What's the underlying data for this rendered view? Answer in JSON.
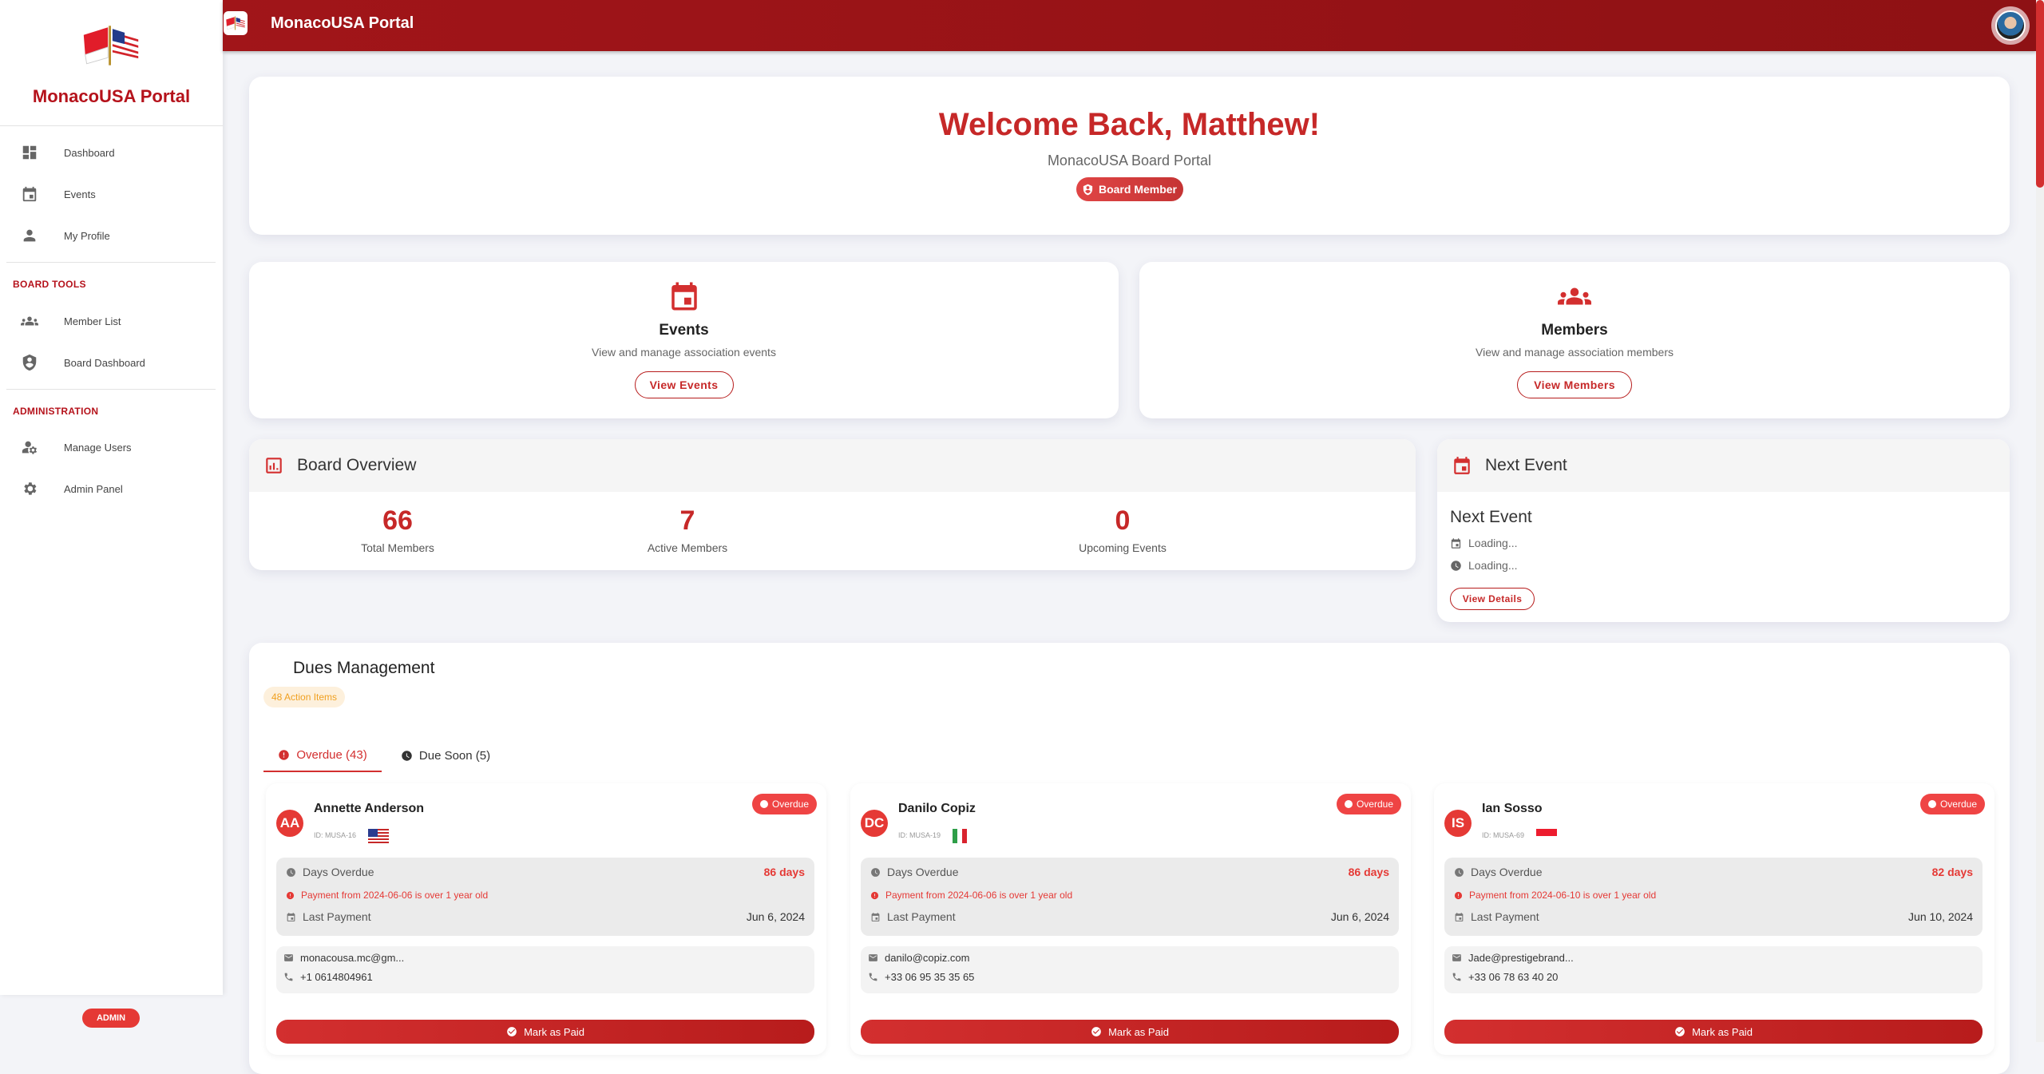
{
  "app": {
    "title": "MonacoUSA Portal",
    "accent": "#b5121b"
  },
  "sidebar": {
    "brand": "MonacoUSA Portal",
    "items": [
      {
        "label": "Dashboard",
        "icon": "dashboard-icon"
      },
      {
        "label": "Events",
        "icon": "calendar-icon"
      },
      {
        "label": "My Profile",
        "icon": "person-icon"
      }
    ],
    "board_tools": {
      "title": "BOARD TOOLS",
      "items": [
        {
          "label": "Member List",
          "icon": "group-icon"
        },
        {
          "label": "Board Dashboard",
          "icon": "shield-account-icon"
        }
      ]
    },
    "administration": {
      "title": "ADMINISTRATION",
      "items": [
        {
          "label": "Manage Users",
          "icon": "manage-accounts-icon"
        },
        {
          "label": "Admin Panel",
          "icon": "gear-icon"
        }
      ]
    },
    "role_badge": "ADMIN"
  },
  "topbar": {
    "title": "MonacoUSA Portal"
  },
  "welcome": {
    "title": "Welcome Back, Matthew!",
    "subtitle": "MonacoUSA Board Portal",
    "badge": "Board Member"
  },
  "quick": [
    {
      "title": "Events",
      "desc": "View and manage association events",
      "button": "View Events",
      "icon": "calendar-icon"
    },
    {
      "title": "Members",
      "desc": "View and manage association members",
      "button": "View Members",
      "icon": "group-icon"
    }
  ],
  "overview": {
    "title": "Board Overview",
    "stats": [
      {
        "value": "66",
        "label": "Total Members"
      },
      {
        "value": "7",
        "label": "Active Members"
      },
      {
        "value": "0",
        "label": "Upcoming Events"
      }
    ]
  },
  "next_event": {
    "header": "Next Event",
    "title": "Next Event",
    "date": "Loading...",
    "time": "Loading...",
    "button": "View Details"
  },
  "dues": {
    "title": "Dues Management",
    "badge": "48 Action Items",
    "tabs": [
      {
        "label": "Overdue (43)",
        "active": true
      },
      {
        "label": "Due Soon (5)",
        "active": false
      }
    ],
    "labels": {
      "days_overdue": "Days Overdue",
      "last_payment": "Last Payment",
      "mark_paid": "Mark as Paid",
      "status": "Overdue"
    },
    "members": [
      {
        "initials": "AA",
        "name": "Annette Anderson",
        "id": "ID: MUSA-16",
        "flag": "us",
        "days": "86 days",
        "warning": "Payment from 2024-06-06 is over 1 year old",
        "last_payment": "Jun 6, 2024",
        "email": "monacousa.mc@gm...",
        "phone": "+1 0614804961"
      },
      {
        "initials": "DC",
        "name": "Danilo Copiz",
        "id": "ID: MUSA-19",
        "flag": "it",
        "days": "86 days",
        "warning": "Payment from 2024-06-06 is over 1 year old",
        "last_payment": "Jun 6, 2024",
        "email": "danilo@copiz.com",
        "phone": "+33 06 95 35 35 65"
      },
      {
        "initials": "IS",
        "name": "Ian Sosso",
        "id": "ID: MUSA-69",
        "flag": "mc",
        "days": "82 days",
        "warning": "Payment from 2024-06-10 is over 1 year old",
        "last_payment": "Jun 10, 2024",
        "email": "Jade@prestigebrand...",
        "phone": "+33 06 78 63 40 20"
      }
    ]
  }
}
